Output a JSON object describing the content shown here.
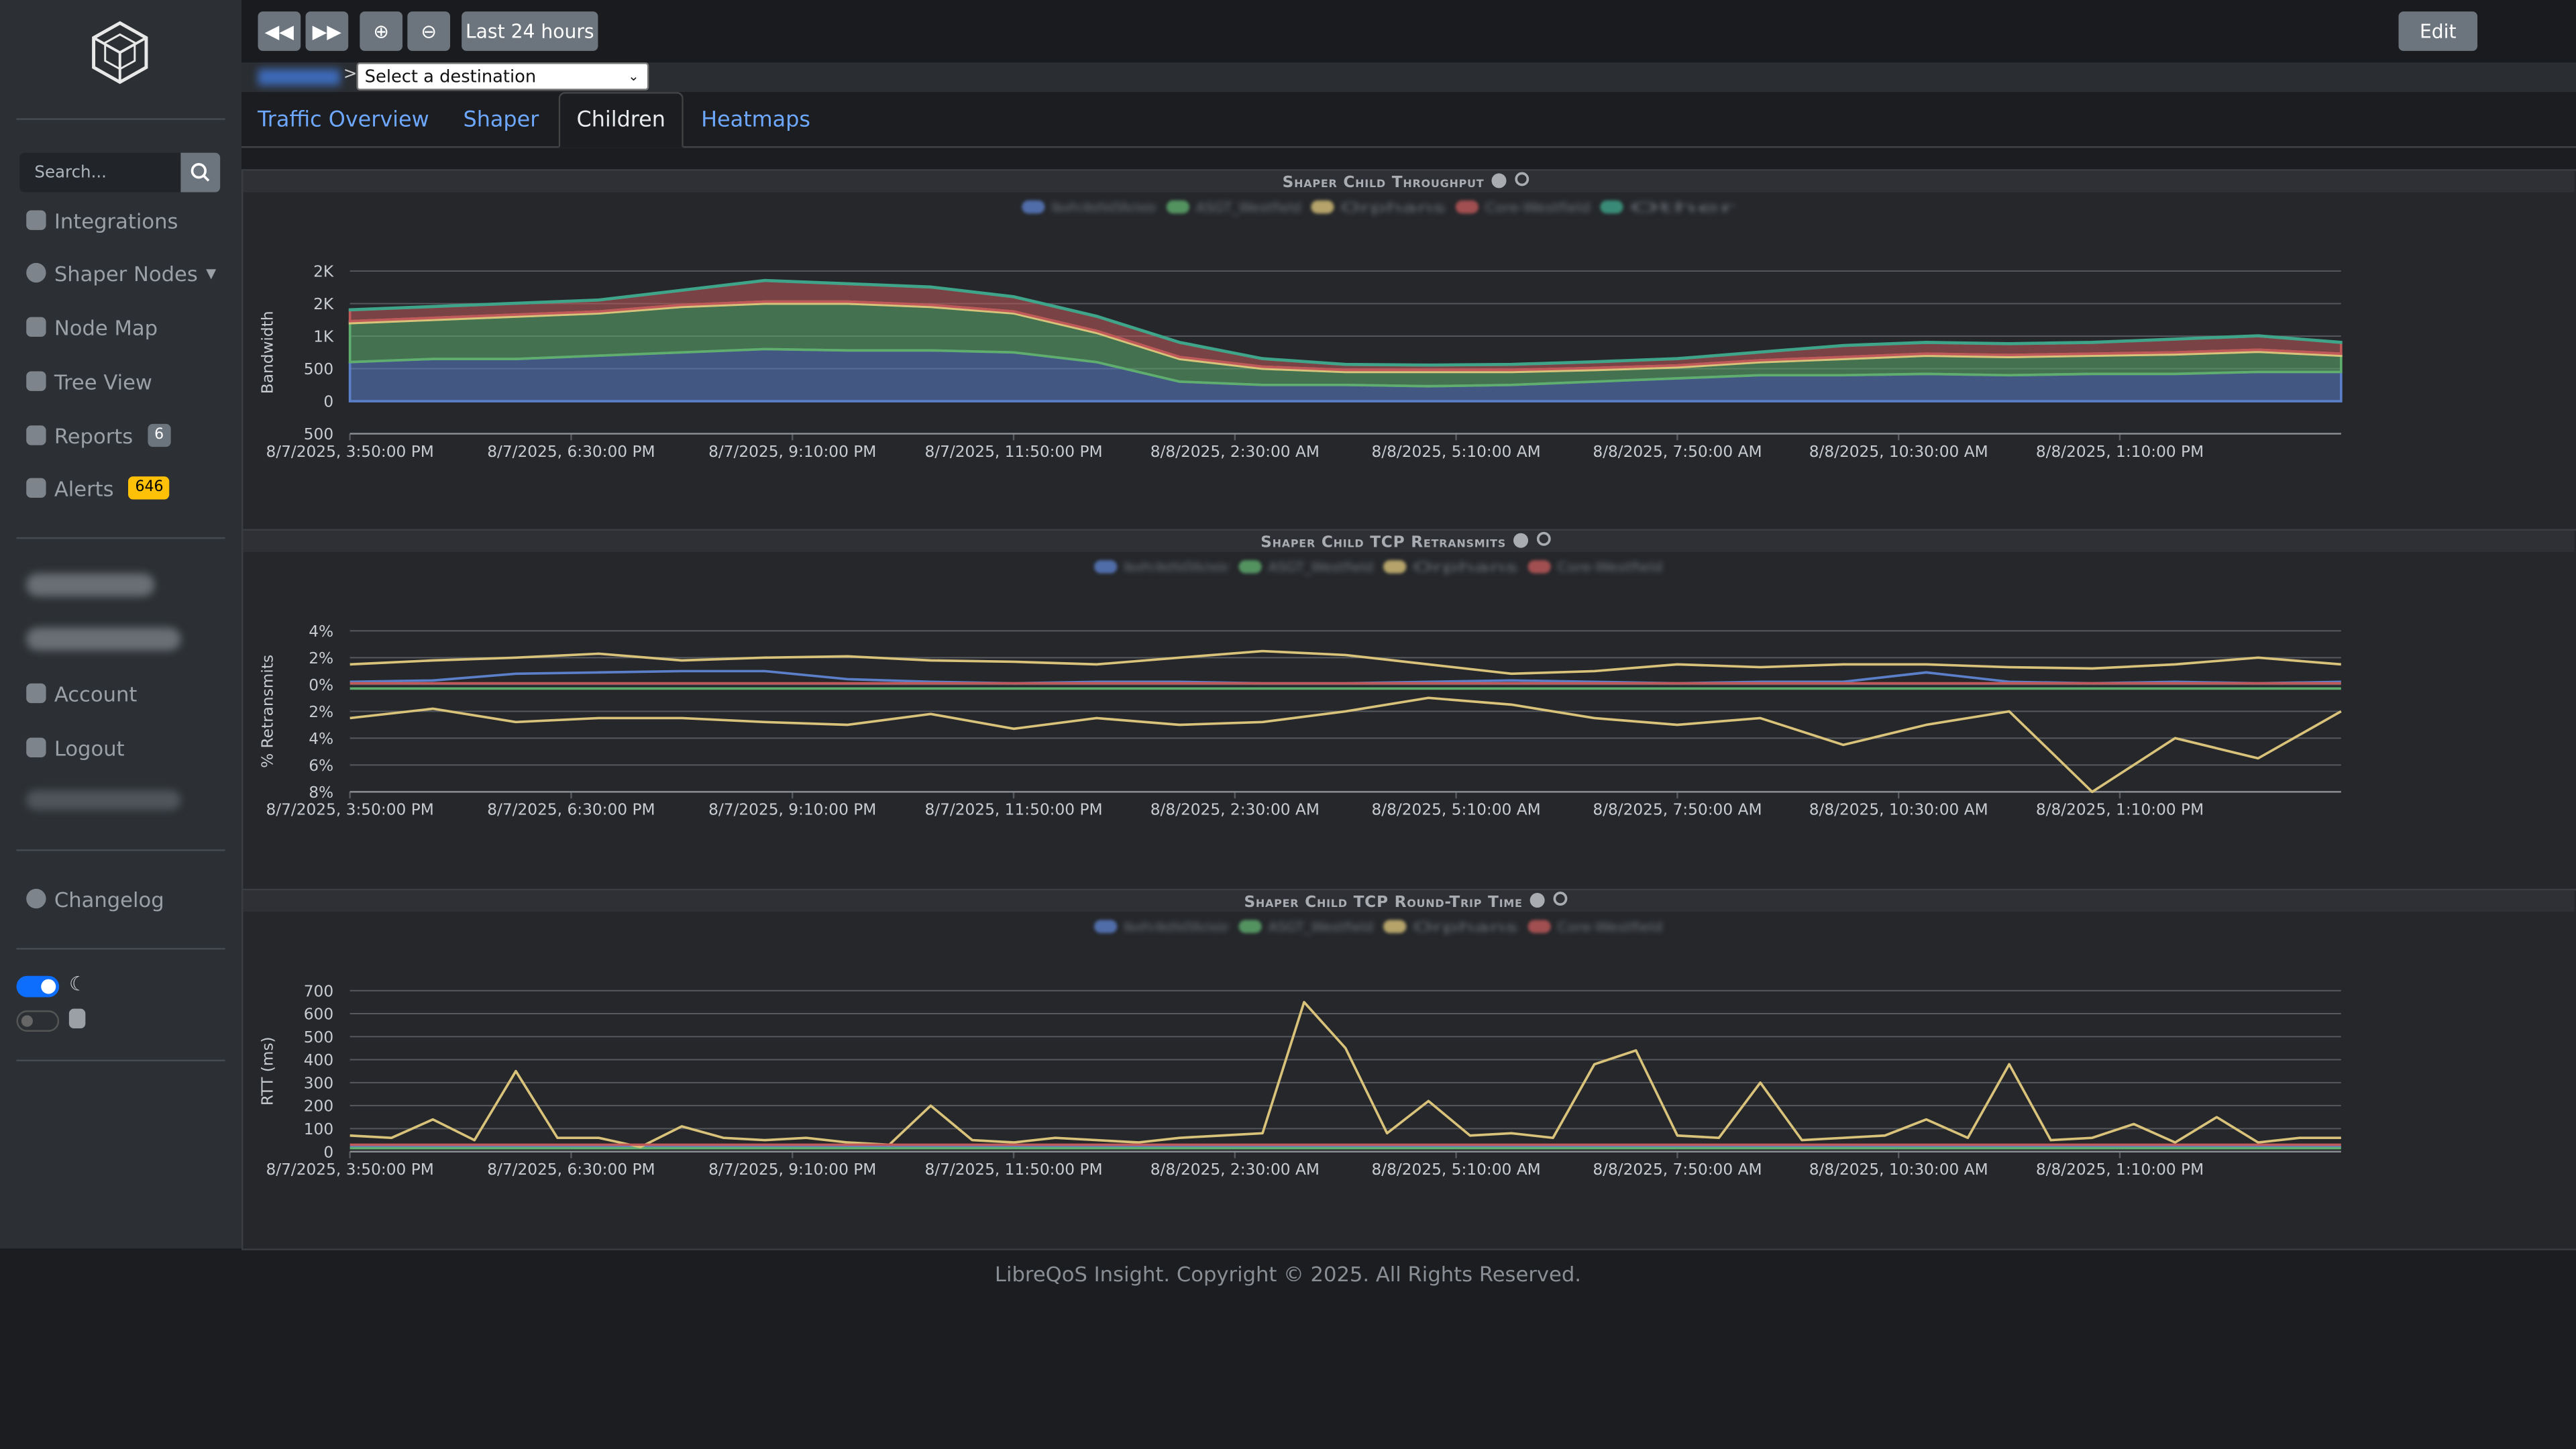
{
  "sidebar": {
    "search_placeholder": "Search...",
    "items": [
      "Integrations",
      "Shaper Nodes",
      "Node Map",
      "Tree View",
      "Reports",
      "Alerts",
      "Account",
      "Logout",
      "Changelog"
    ],
    "reports_badge": "6",
    "alerts_badge": "646"
  },
  "toolbar": {
    "range": "Last 24 hours",
    "edit": "Edit",
    "destination": "Select a destination"
  },
  "tabs": [
    "Traffic Overview",
    "Shaper",
    "Children",
    "Heatmaps"
  ],
  "charts": [
    {
      "type": "stacked_area",
      "title": "Shaper Child Throughput",
      "ylabel": "Bandwidth",
      "xlim": [
        0,
        24
      ],
      "xticks": [
        {
          "value": 0,
          "label": "8/7/2025, 3:50:00 PM"
        },
        {
          "value": 2.6667,
          "label": "8/7/2025, 6:30:00 PM"
        },
        {
          "value": 5.3333,
          "label": "8/7/2025, 9:10:00 PM"
        },
        {
          "value": 8,
          "label": "8/7/2025, 11:50:00 PM"
        },
        {
          "value": 10.6667,
          "label": "8/8/2025, 2:30:00 AM"
        },
        {
          "value": 13.3333,
          "label": "8/8/2025, 5:10:00 AM"
        },
        {
          "value": 16,
          "label": "8/8/2025, 7:50:00 AM"
        },
        {
          "value": 18.6667,
          "label": "8/8/2025, 10:30:00 AM"
        },
        {
          "value": 21.3333,
          "label": "8/8/2025, 1:10:00 PM"
        }
      ],
      "ylim": [
        -500,
        2000
      ],
      "yticks": [
        {
          "value": 2000,
          "label": "2K"
        },
        {
          "value": 1500,
          "label": "2K"
        },
        {
          "value": 1000,
          "label": "1K"
        },
        500,
        0,
        {
          "value": -500,
          "label": "500"
        }
      ],
      "grid": true,
      "x": [
        0,
        1,
        2,
        3,
        4,
        5,
        6,
        7,
        8,
        9,
        10,
        11,
        12,
        13,
        14,
        15,
        16,
        17,
        18,
        19,
        20,
        21,
        22,
        23,
        24
      ],
      "series": [
        {
          "name": "WavePro-WestfieldToRochester",
          "color": "#5b7fc9",
          "values": [
            600,
            650,
            650,
            700,
            750,
            800,
            780,
            780,
            750,
            600,
            300,
            250,
            250,
            230,
            250,
            300,
            350,
            400,
            400,
            420,
            400,
            420,
            420,
            450,
            450
          ]
        },
        {
          "name": "ASGT_Westfield",
          "color": "#5fae6e",
          "values": [
            600,
            600,
            650,
            650,
            700,
            700,
            720,
            670,
            600,
            450,
            350,
            250,
            200,
            220,
            200,
            180,
            170,
            200,
            250,
            280,
            280,
            280,
            300,
            310,
            250
          ]
        },
        {
          "name": "Orphans",
          "color": "#d9c27a",
          "values": [
            30,
            30,
            30,
            30,
            30,
            30,
            30,
            30,
            30,
            30,
            30,
            30,
            30,
            30,
            30,
            30,
            30,
            30,
            30,
            30,
            30,
            30,
            30,
            30,
            30
          ]
        },
        {
          "name": "Core-Westfield",
          "color": "#c0595a",
          "values": [
            170,
            170,
            170,
            170,
            220,
            320,
            270,
            270,
            220,
            220,
            220,
            120,
            80,
            70,
            80,
            90,
            100,
            120,
            170,
            170,
            170,
            170,
            200,
            210,
            170
          ]
        },
        {
          "name": "Other",
          "color": "#3fa58a",
          "values": [
            10,
            10,
            10,
            10,
            10,
            10,
            10,
            10,
            10,
            10,
            10,
            10,
            10,
            10,
            10,
            10,
            10,
            10,
            10,
            10,
            10,
            10,
            10,
            10,
            10
          ]
        }
      ]
    },
    {
      "type": "line",
      "title": "Shaper Child TCP Retransmits",
      "ylabel": "% Retransmits",
      "xlim": [
        0,
        24
      ],
      "xticks": [
        {
          "value": 0,
          "label": "8/7/2025, 3:50:00 PM"
        },
        {
          "value": 2.6667,
          "label": "8/7/2025, 6:30:00 PM"
        },
        {
          "value": 5.3333,
          "label": "8/7/2025, 9:10:00 PM"
        },
        {
          "value": 8,
          "label": "8/7/2025, 11:50:00 PM"
        },
        {
          "value": 10.6667,
          "label": "8/8/2025, 2:30:00 AM"
        },
        {
          "value": 13.3333,
          "label": "8/8/2025, 5:10:00 AM"
        },
        {
          "value": 16,
          "label": "8/8/2025, 7:50:00 AM"
        },
        {
          "value": 18.6667,
          "label": "8/8/2025, 10:30:00 AM"
        },
        {
          "value": 21.3333,
          "label": "8/8/2025, 1:10:00 PM"
        }
      ],
      "ylim": [
        -8,
        4
      ],
      "yticks": [
        {
          "value": 4,
          "label": "4%"
        },
        {
          "value": 2,
          "label": "2%"
        },
        {
          "value": 0,
          "label": "0%"
        },
        {
          "value": -2,
          "label": "2%"
        },
        {
          "value": -4,
          "label": "4%"
        },
        {
          "value": -6,
          "label": "6%"
        },
        {
          "value": -8,
          "label": "8%"
        }
      ],
      "grid": true,
      "x": [
        0,
        1,
        2,
        3,
        4,
        5,
        6,
        7,
        8,
        9,
        10,
        11,
        12,
        13,
        14,
        15,
        16,
        17,
        18,
        19,
        20,
        21,
        22,
        23,
        24
      ],
      "series": [
        {
          "name": "WavePro-WestfieldToRochester",
          "color": "#5b7fc9",
          "values": [
            0.2,
            0.3,
            0.8,
            0.9,
            1.0,
            1.0,
            0.4,
            0.2,
            0.1,
            0.2,
            0.2,
            0.1,
            0.1,
            0.2,
            0.3,
            0.2,
            0.1,
            0.2,
            0.2,
            0.9,
            0.2,
            0.1,
            0.2,
            0.1,
            0.2
          ]
        },
        {
          "name": "ASGT_Westfield",
          "color": "#5fae6e",
          "values": [
            -0.3,
            -0.3,
            -0.3,
            -0.3,
            -0.3,
            -0.3,
            -0.3,
            -0.3,
            -0.3,
            -0.3,
            -0.3,
            -0.3,
            -0.3,
            -0.3,
            -0.3,
            -0.3,
            -0.3,
            -0.3,
            -0.3,
            -0.3,
            -0.3,
            -0.3,
            -0.3,
            -0.3,
            -0.3
          ]
        },
        {
          "name": "Orphans",
          "color": "#d9c27a",
          "values": [
            1.5,
            1.8,
            2.0,
            2.3,
            1.8,
            2.0,
            2.1,
            1.8,
            1.7,
            1.5,
            2.0,
            2.5,
            2.2,
            1.5,
            0.8,
            1.0,
            1.5,
            1.3,
            1.5,
            1.5,
            1.3,
            1.2,
            1.5,
            2.0,
            1.5
          ],
          "values_down": [
            -2.5,
            -1.8,
            -2.8,
            -2.5,
            -2.5,
            -2.8,
            -3.0,
            -2.2,
            -3.3,
            -2.5,
            -3.0,
            -2.8,
            -2.0,
            -1.0,
            -1.5,
            -2.5,
            -3.0,
            -2.5,
            -4.5,
            -3.0,
            -2.0,
            -8.0,
            -4.0,
            -5.5,
            -2.0
          ]
        },
        {
          "name": "Core-Westfield",
          "color": "#c0595a",
          "values": [
            0.1,
            0.1,
            0.1,
            0.1,
            0.1,
            0.1,
            0.1,
            0.1,
            0.1,
            0.1,
            0.1,
            0.1,
            0.1,
            0.1,
            0.1,
            0.1,
            0.1,
            0.1,
            0.1,
            0.1,
            0.1,
            0.1,
            0.1,
            0.1,
            0.1
          ]
        }
      ]
    },
    {
      "type": "line",
      "title": "Shaper Child TCP Round-Trip Time",
      "ylabel": "RTT (ms)",
      "xlim": [
        0,
        24
      ],
      "xticks": [
        {
          "value": 0,
          "label": "8/7/2025, 3:50:00 PM"
        },
        {
          "value": 2.6667,
          "label": "8/7/2025, 6:30:00 PM"
        },
        {
          "value": 5.3333,
          "label": "8/7/2025, 9:10:00 PM"
        },
        {
          "value": 8,
          "label": "8/7/2025, 11:50:00 PM"
        },
        {
          "value": 10.6667,
          "label": "8/8/2025, 2:30:00 AM"
        },
        {
          "value": 13.3333,
          "label": "8/8/2025, 5:10:00 AM"
        },
        {
          "value": 16,
          "label": "8/8/2025, 7:50:00 AM"
        },
        {
          "value": 18.6667,
          "label": "8/8/2025, 10:30:00 AM"
        },
        {
          "value": 21.3333,
          "label": "8/8/2025, 1:10:00 PM"
        }
      ],
      "ylim": [
        0,
        700
      ],
      "yticks": [
        0,
        100,
        200,
        300,
        400,
        500,
        600,
        700
      ],
      "grid": true,
      "x": [
        0,
        0.5,
        1,
        1.5,
        2,
        2.5,
        3,
        3.5,
        4,
        4.5,
        5,
        5.5,
        6,
        6.5,
        7,
        7.5,
        8,
        8.5,
        9,
        9.5,
        10,
        10.5,
        11,
        11.5,
        12,
        12.5,
        13,
        13.5,
        14,
        14.5,
        15,
        15.5,
        16,
        16.5,
        17,
        17.5,
        18,
        18.5,
        19,
        19.5,
        20,
        20.5,
        21,
        21.5,
        22,
        22.5,
        23,
        23.5,
        24
      ],
      "series": [
        {
          "name": "WavePro-WestfieldToRochester",
          "color": "#5b7fc9",
          "values": [
            20,
            20,
            20,
            20,
            20,
            20,
            20,
            20,
            20,
            20,
            20,
            20,
            20,
            20,
            20,
            20,
            20,
            20,
            20,
            20,
            20,
            20,
            20,
            20,
            20,
            20,
            20,
            20,
            20,
            20,
            20,
            20,
            20,
            20,
            20,
            20,
            20,
            20,
            20,
            20,
            20,
            20,
            20,
            20,
            20,
            20,
            20,
            20,
            20
          ]
        },
        {
          "name": "ASGT_Westfield",
          "color": "#5fae6e",
          "values": [
            15,
            15,
            15,
            15,
            15,
            15,
            15,
            15,
            15,
            15,
            15,
            15,
            15,
            15,
            15,
            15,
            15,
            15,
            15,
            15,
            15,
            15,
            15,
            15,
            15,
            15,
            15,
            15,
            15,
            15,
            15,
            15,
            15,
            15,
            15,
            15,
            15,
            15,
            15,
            15,
            15,
            15,
            15,
            15,
            15,
            15,
            15,
            15,
            15
          ]
        },
        {
          "name": "Orphans",
          "color": "#d9c27a",
          "values": [
            70,
            60,
            140,
            50,
            350,
            60,
            60,
            20,
            110,
            60,
            50,
            60,
            40,
            30,
            200,
            50,
            40,
            60,
            50,
            40,
            60,
            70,
            80,
            650,
            450,
            80,
            220,
            70,
            80,
            60,
            380,
            440,
            70,
            60,
            300,
            50,
            60,
            70,
            140,
            60,
            380,
            50,
            60,
            120,
            40,
            150,
            40,
            60,
            60
          ]
        },
        {
          "name": "Core-Westfield",
          "color": "#c0595a",
          "values": [
            30,
            30,
            30,
            30,
            30,
            30,
            30,
            30,
            30,
            30,
            30,
            30,
            30,
            30,
            30,
            30,
            30,
            30,
            30,
            30,
            30,
            30,
            30,
            30,
            30,
            30,
            30,
            30,
            30,
            30,
            30,
            30,
            30,
            30,
            30,
            30,
            30,
            30,
            30,
            30,
            30,
            30,
            30,
            30,
            30,
            30,
            30,
            30,
            30
          ]
        }
      ]
    }
  ],
  "footer": "LibreQoS Insight. Copyright © 2025. All Rights Reserved."
}
